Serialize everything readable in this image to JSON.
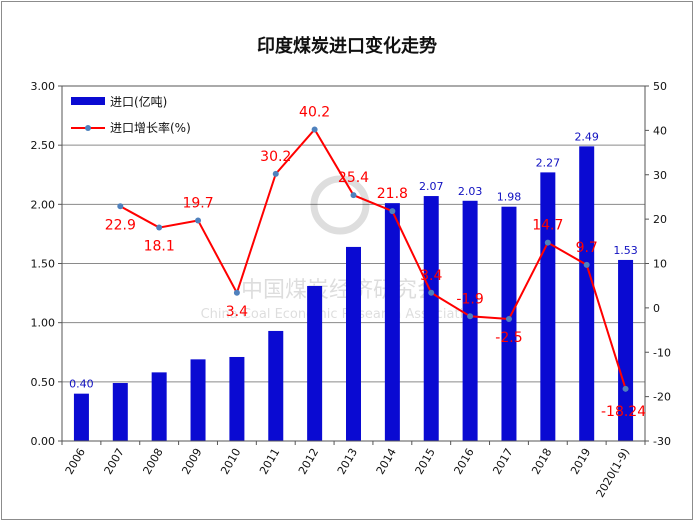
{
  "chart_data": {
    "type": "bar",
    "title": "印度煤炭进口变化走势",
    "categories": [
      "2006",
      "2007",
      "2008",
      "2009",
      "2010",
      "2011",
      "2012",
      "2013",
      "2014",
      "2015",
      "2016",
      "2017",
      "2018",
      "2019",
      "2020(1-9)"
    ],
    "series": [
      {
        "name": "进口(亿吨)",
        "type": "bar",
        "axis": "left",
        "color": "#0a0ad2",
        "values": [
          0.4,
          0.49,
          0.58,
          0.69,
          0.71,
          0.93,
          1.31,
          1.64,
          2.01,
          2.07,
          2.03,
          1.98,
          2.27,
          2.49,
          1.53
        ],
        "data_labels": [
          "0.40",
          "",
          "",
          "",
          "",
          "",
          "",
          "",
          "",
          "2.07",
          "2.03",
          "1.98",
          "2.27",
          "2.49",
          "1.53"
        ]
      },
      {
        "name": "进口增长率(%)",
        "type": "line",
        "axis": "right",
        "color": "#ff0000",
        "marker_color": "#4f81bd",
        "values": [
          null,
          22.9,
          18.1,
          19.7,
          3.4,
          30.2,
          40.2,
          25.4,
          21.8,
          3.4,
          -1.9,
          -2.5,
          14.7,
          9.7,
          -18.24
        ],
        "data_labels": [
          "",
          "22.9",
          "18.1",
          "19.7",
          "3.4",
          "30.2",
          "40.2",
          "25.4",
          "21.8",
          "3.4",
          "-1.9",
          "-2.5",
          "14.7",
          "9.7",
          "-18.24"
        ]
      }
    ],
    "y_left": {
      "min": 0,
      "max": 3.0,
      "step": 0.5,
      "tick_labels": [
        "0.00",
        "0.50",
        "1.00",
        "1.50",
        "2.00",
        "2.50",
        "3.00"
      ]
    },
    "y_right": {
      "min": -30,
      "max": 50,
      "step": 10,
      "tick_labels": [
        "-30",
        "-20",
        "-10",
        "0",
        "10",
        "20",
        "30",
        "40",
        "50"
      ]
    },
    "grid": true,
    "legend_position": "top-left",
    "watermark": {
      "line1": "中国煤炭经济研究会",
      "line2": "China Coal Economic Research Association"
    }
  }
}
